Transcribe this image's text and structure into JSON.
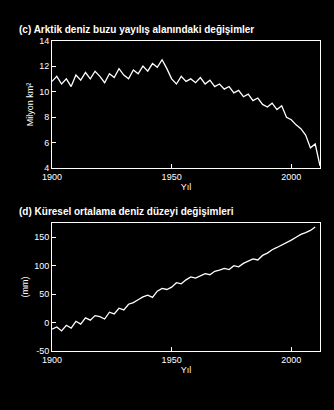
{
  "chart_data": [
    {
      "type": "line",
      "title": "(c) Arktik deniz buzu yayılış alanındaki değişimler",
      "x_label": "Yıl",
      "y_label": "Milyon km²",
      "color": "#ffffff",
      "x": [
        1900,
        1902,
        1904,
        1906,
        1908,
        1910,
        1912,
        1914,
        1916,
        1918,
        1920,
        1922,
        1924,
        1926,
        1928,
        1930,
        1932,
        1934,
        1936,
        1938,
        1940,
        1942,
        1944,
        1946,
        1948,
        1950,
        1952,
        1954,
        1956,
        1958,
        1960,
        1962,
        1964,
        1966,
        1968,
        1970,
        1972,
        1974,
        1976,
        1978,
        1980,
        1982,
        1984,
        1986,
        1988,
        1990,
        1992,
        1994,
        1996,
        1998,
        2000,
        2002,
        2004,
        2006,
        2008,
        2010,
        2012
      ],
      "values": [
        10.8,
        11.2,
        10.6,
        11.0,
        10.4,
        11.3,
        10.9,
        11.5,
        11.0,
        11.6,
        11.2,
        10.7,
        11.4,
        11.1,
        11.8,
        11.3,
        11.0,
        11.7,
        11.4,
        12.0,
        11.6,
        12.2,
        11.9,
        12.5,
        11.8,
        11.0,
        10.6,
        11.2,
        10.8,
        11.0,
        10.7,
        11.1,
        10.6,
        10.9,
        10.4,
        10.6,
        10.2,
        10.4,
        9.9,
        10.1,
        9.6,
        9.8,
        9.3,
        9.5,
        9.0,
        8.8,
        9.1,
        8.6,
        8.9,
        8.0,
        7.8,
        7.4,
        7.1,
        6.6,
        5.6,
        5.9,
        4.2
      ],
      "xlim": [
        1900,
        2012
      ],
      "xticks": [
        1900,
        1950,
        2000
      ],
      "ylim": [
        4,
        14
      ],
      "yticks": [
        4,
        6,
        8,
        10,
        12,
        14
      ],
      "grid": false
    },
    {
      "type": "line",
      "title": "(d) Küresel ortalama deniz düzeyi değişimleri",
      "x_label": "Yıl",
      "y_label": "(mm)",
      "color": "#ffffff",
      "x": [
        1900,
        1902,
        1904,
        1906,
        1908,
        1910,
        1912,
        1914,
        1916,
        1918,
        1920,
        1922,
        1924,
        1926,
        1928,
        1930,
        1932,
        1934,
        1936,
        1938,
        1940,
        1942,
        1944,
        1946,
        1948,
        1950,
        1952,
        1954,
        1956,
        1958,
        1960,
        1962,
        1964,
        1966,
        1968,
        1970,
        1972,
        1974,
        1976,
        1978,
        1980,
        1982,
        1984,
        1986,
        1988,
        1990,
        1992,
        1994,
        1996,
        1998,
        2000,
        2002,
        2004,
        2006,
        2008,
        2010
      ],
      "values": [
        -12,
        -8,
        -15,
        -5,
        -10,
        2,
        -3,
        8,
        4,
        12,
        10,
        6,
        18,
        15,
        25,
        22,
        32,
        35,
        40,
        45,
        48,
        44,
        55,
        60,
        58,
        62,
        70,
        68,
        75,
        80,
        78,
        82,
        86,
        84,
        90,
        92,
        95,
        93,
        100,
        98,
        104,
        108,
        112,
        110,
        118,
        122,
        128,
        132,
        136,
        140,
        145,
        150,
        155,
        158,
        162,
        168
      ],
      "xlim": [
        1900,
        2012
      ],
      "xticks": [
        1900,
        1950,
        2000
      ],
      "ylim": [
        -50,
        175
      ],
      "yticks": [
        -50,
        0,
        50,
        100,
        150
      ],
      "grid": false
    }
  ]
}
